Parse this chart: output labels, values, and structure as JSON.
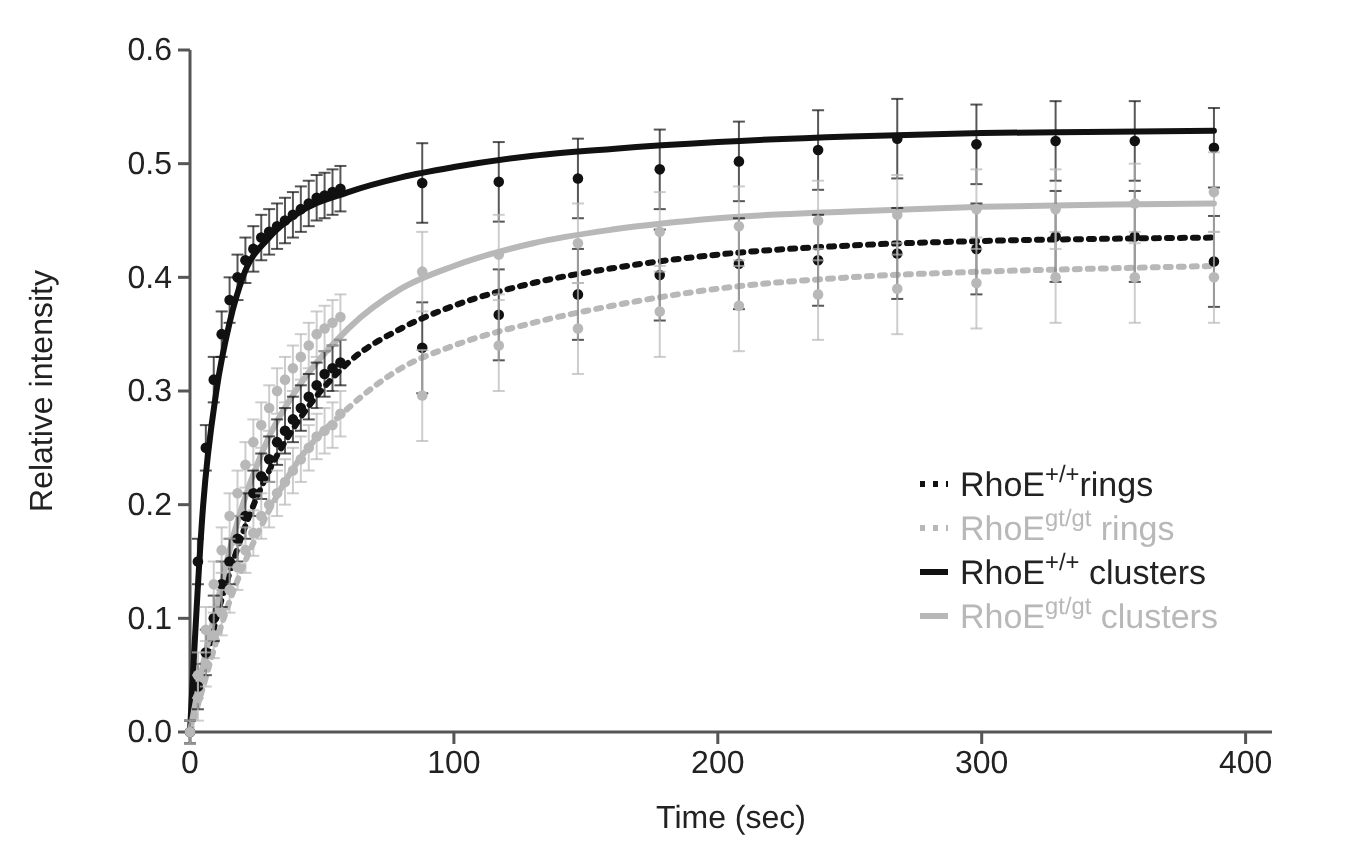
{
  "chart_data": {
    "type": "scatter",
    "xlabel": "Time (sec)",
    "ylabel": "Relative intensity",
    "xlim": [
      0,
      410
    ],
    "ylim": [
      0,
      0.6
    ],
    "xticks": [
      0,
      100,
      200,
      300,
      400
    ],
    "yticks": [
      {
        "value": 0,
        "label": "0.0"
      },
      0.1,
      0.2,
      0.3,
      0.4,
      0.5,
      0.6
    ],
    "grid": false,
    "legend": "bottom right",
    "series": [
      {
        "color": "#111111",
        "marker": "circle",
        "x": [
          0,
          3,
          6,
          9,
          12,
          15,
          18,
          21,
          24,
          27,
          30,
          33,
          36,
          39,
          42,
          45,
          48,
          51,
          54,
          57,
          88,
          117,
          147,
          178,
          208,
          238,
          268,
          298,
          328,
          358,
          388
        ],
        "values": [
          0,
          0.04,
          0.07,
          0.1,
          0.13,
          0.15,
          0.17,
          0.19,
          0.21,
          0.225,
          0.24,
          0.255,
          0.265,
          0.275,
          0.285,
          0.295,
          0.305,
          0.315,
          0.32,
          0.325,
          0.338,
          0.367,
          0.385,
          0.402,
          0.412,
          0.415,
          0.421,
          0.425,
          0.436,
          0.436,
          0.414
        ],
        "errors": [
          0.01,
          0.02,
          0.02,
          0.02,
          0.02,
          0.02,
          0.02,
          0.02,
          0.02,
          0.02,
          0.02,
          0.02,
          0.02,
          0.02,
          0.02,
          0.02,
          0.02,
          0.02,
          0.02,
          0.02,
          0.04,
          0.04,
          0.04,
          0.04,
          0.04,
          0.04,
          0.04,
          0.04,
          0.04,
          0.04,
          0.04
        ]
      },
      {
        "color": "#b8b8b8",
        "marker": "circle",
        "x": [
          0,
          3,
          6,
          9,
          12,
          15,
          18,
          21,
          24,
          27,
          30,
          33,
          36,
          39,
          42,
          45,
          48,
          51,
          54,
          57,
          88,
          117,
          147,
          178,
          208,
          238,
          268,
          298,
          328,
          358,
          388
        ],
        "values": [
          0,
          0.03,
          0.06,
          0.085,
          0.105,
          0.125,
          0.145,
          0.16,
          0.175,
          0.19,
          0.2,
          0.21,
          0.22,
          0.23,
          0.24,
          0.25,
          0.26,
          0.265,
          0.27,
          0.28,
          0.296,
          0.34,
          0.355,
          0.37,
          0.375,
          0.385,
          0.39,
          0.395,
          0.4,
          0.4,
          0.4
        ],
        "errors": [
          0.01,
          0.02,
          0.02,
          0.02,
          0.02,
          0.02,
          0.02,
          0.02,
          0.02,
          0.02,
          0.02,
          0.02,
          0.02,
          0.02,
          0.02,
          0.02,
          0.02,
          0.02,
          0.02,
          0.02,
          0.04,
          0.04,
          0.04,
          0.04,
          0.04,
          0.04,
          0.04,
          0.04,
          0.04,
          0.04,
          0.04
        ]
      },
      {
        "color": "#111111",
        "marker": "circle",
        "x": [
          0,
          3,
          6,
          9,
          12,
          15,
          18,
          21,
          24,
          27,
          30,
          33,
          36,
          39,
          42,
          45,
          48,
          51,
          54,
          57,
          88,
          117,
          147,
          178,
          208,
          238,
          268,
          298,
          328,
          358,
          388
        ],
        "values": [
          0,
          0.15,
          0.25,
          0.31,
          0.35,
          0.38,
          0.4,
          0.415,
          0.425,
          0.435,
          0.44,
          0.445,
          0.45,
          0.455,
          0.46,
          0.465,
          0.47,
          0.472,
          0.475,
          0.478,
          0.483,
          0.484,
          0.487,
          0.495,
          0.502,
          0.512,
          0.522,
          0.517,
          0.52,
          0.52,
          0.514
        ],
        "errors": [
          0.01,
          0.02,
          0.02,
          0.02,
          0.02,
          0.02,
          0.02,
          0.02,
          0.02,
          0.02,
          0.02,
          0.02,
          0.02,
          0.02,
          0.02,
          0.02,
          0.02,
          0.02,
          0.02,
          0.02,
          0.035,
          0.035,
          0.035,
          0.035,
          0.035,
          0.035,
          0.035,
          0.035,
          0.035,
          0.035,
          0.035
        ]
      },
      {
        "color": "#b8b8b8",
        "marker": "circle",
        "x": [
          0,
          3,
          6,
          9,
          12,
          15,
          18,
          21,
          24,
          27,
          30,
          33,
          36,
          39,
          42,
          45,
          48,
          51,
          54,
          57,
          88,
          117,
          147,
          178,
          208,
          238,
          268,
          298,
          328,
          358,
          388
        ],
        "values": [
          0,
          0.05,
          0.09,
          0.13,
          0.16,
          0.19,
          0.21,
          0.235,
          0.255,
          0.27,
          0.285,
          0.3,
          0.31,
          0.32,
          0.33,
          0.34,
          0.35,
          0.355,
          0.36,
          0.365,
          0.405,
          0.42,
          0.43,
          0.44,
          0.445,
          0.45,
          0.455,
          0.46,
          0.46,
          0.465,
          0.475
        ],
        "errors": [
          0.01,
          0.02,
          0.02,
          0.02,
          0.02,
          0.02,
          0.02,
          0.02,
          0.02,
          0.02,
          0.02,
          0.02,
          0.02,
          0.02,
          0.02,
          0.02,
          0.02,
          0.02,
          0.02,
          0.02,
          0.035,
          0.035,
          0.035,
          0.035,
          0.035,
          0.035,
          0.035,
          0.035,
          0.035,
          0.035,
          0.035
        ]
      },
      {
        "type": "line",
        "name": "RhoE$^{+/+}$rings",
        "color": "#111111",
        "line_style": "dotted",
        "x": [
          0,
          5,
          10,
          15,
          20,
          30,
          40,
          60,
          80,
          100,
          130,
          160,
          200,
          250,
          300,
          350,
          388
        ],
        "values": [
          0,
          0.05,
          0.1,
          0.14,
          0.175,
          0.23,
          0.27,
          0.325,
          0.355,
          0.375,
          0.395,
          0.408,
          0.42,
          0.428,
          0.432,
          0.434,
          0.435
        ]
      },
      {
        "type": "line",
        "name": "RhoE$^{gt/gt}$ rings",
        "color": "#b8b8b8",
        "line_style": "dotted",
        "x": [
          0,
          5,
          10,
          15,
          20,
          30,
          40,
          60,
          80,
          100,
          130,
          160,
          200,
          250,
          300,
          350,
          388
        ],
        "values": [
          0,
          0.04,
          0.08,
          0.115,
          0.145,
          0.195,
          0.235,
          0.285,
          0.32,
          0.34,
          0.36,
          0.375,
          0.39,
          0.4,
          0.405,
          0.408,
          0.41
        ]
      },
      {
        "type": "line",
        "name": "RhoE$^{+/+}$ clusters",
        "color": "#111111",
        "line_style": "solid",
        "x": [
          0,
          5,
          10,
          15,
          20,
          30,
          40,
          60,
          80,
          100,
          130,
          160,
          200,
          250,
          300,
          350,
          388
        ],
        "values": [
          0,
          0.2,
          0.3,
          0.36,
          0.4,
          0.435,
          0.455,
          0.475,
          0.488,
          0.497,
          0.507,
          0.513,
          0.519,
          0.524,
          0.527,
          0.528,
          0.529
        ]
      },
      {
        "type": "line",
        "name": "RhoE$^{gt/gt}$ clusters",
        "color": "#b8b8b8",
        "line_style": "solid",
        "x": [
          0,
          5,
          10,
          15,
          20,
          30,
          40,
          60,
          80,
          100,
          130,
          160,
          200,
          250,
          300,
          350,
          388
        ],
        "values": [
          0,
          0.06,
          0.11,
          0.16,
          0.2,
          0.26,
          0.3,
          0.355,
          0.39,
          0.41,
          0.43,
          0.442,
          0.452,
          0.458,
          0.462,
          0.464,
          0.465
        ]
      }
    ]
  }
}
